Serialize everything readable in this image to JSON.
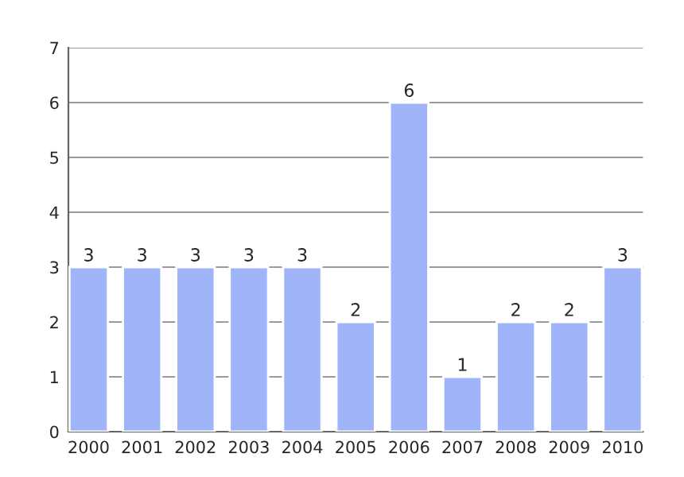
{
  "chart_data": {
    "type": "bar",
    "categories": [
      "2000",
      "2001",
      "2002",
      "2003",
      "2004",
      "2005",
      "2006",
      "2007",
      "2008",
      "2009",
      "2010"
    ],
    "values": [
      3,
      3,
      3,
      3,
      3,
      2,
      6,
      1,
      2,
      2,
      3
    ],
    "color": "#a0b4fa",
    "ylim": [
      0,
      7
    ],
    "yticks": [
      0,
      1,
      2,
      3,
      4,
      5,
      6,
      7
    ],
    "grid": "y",
    "data_labels": true
  }
}
